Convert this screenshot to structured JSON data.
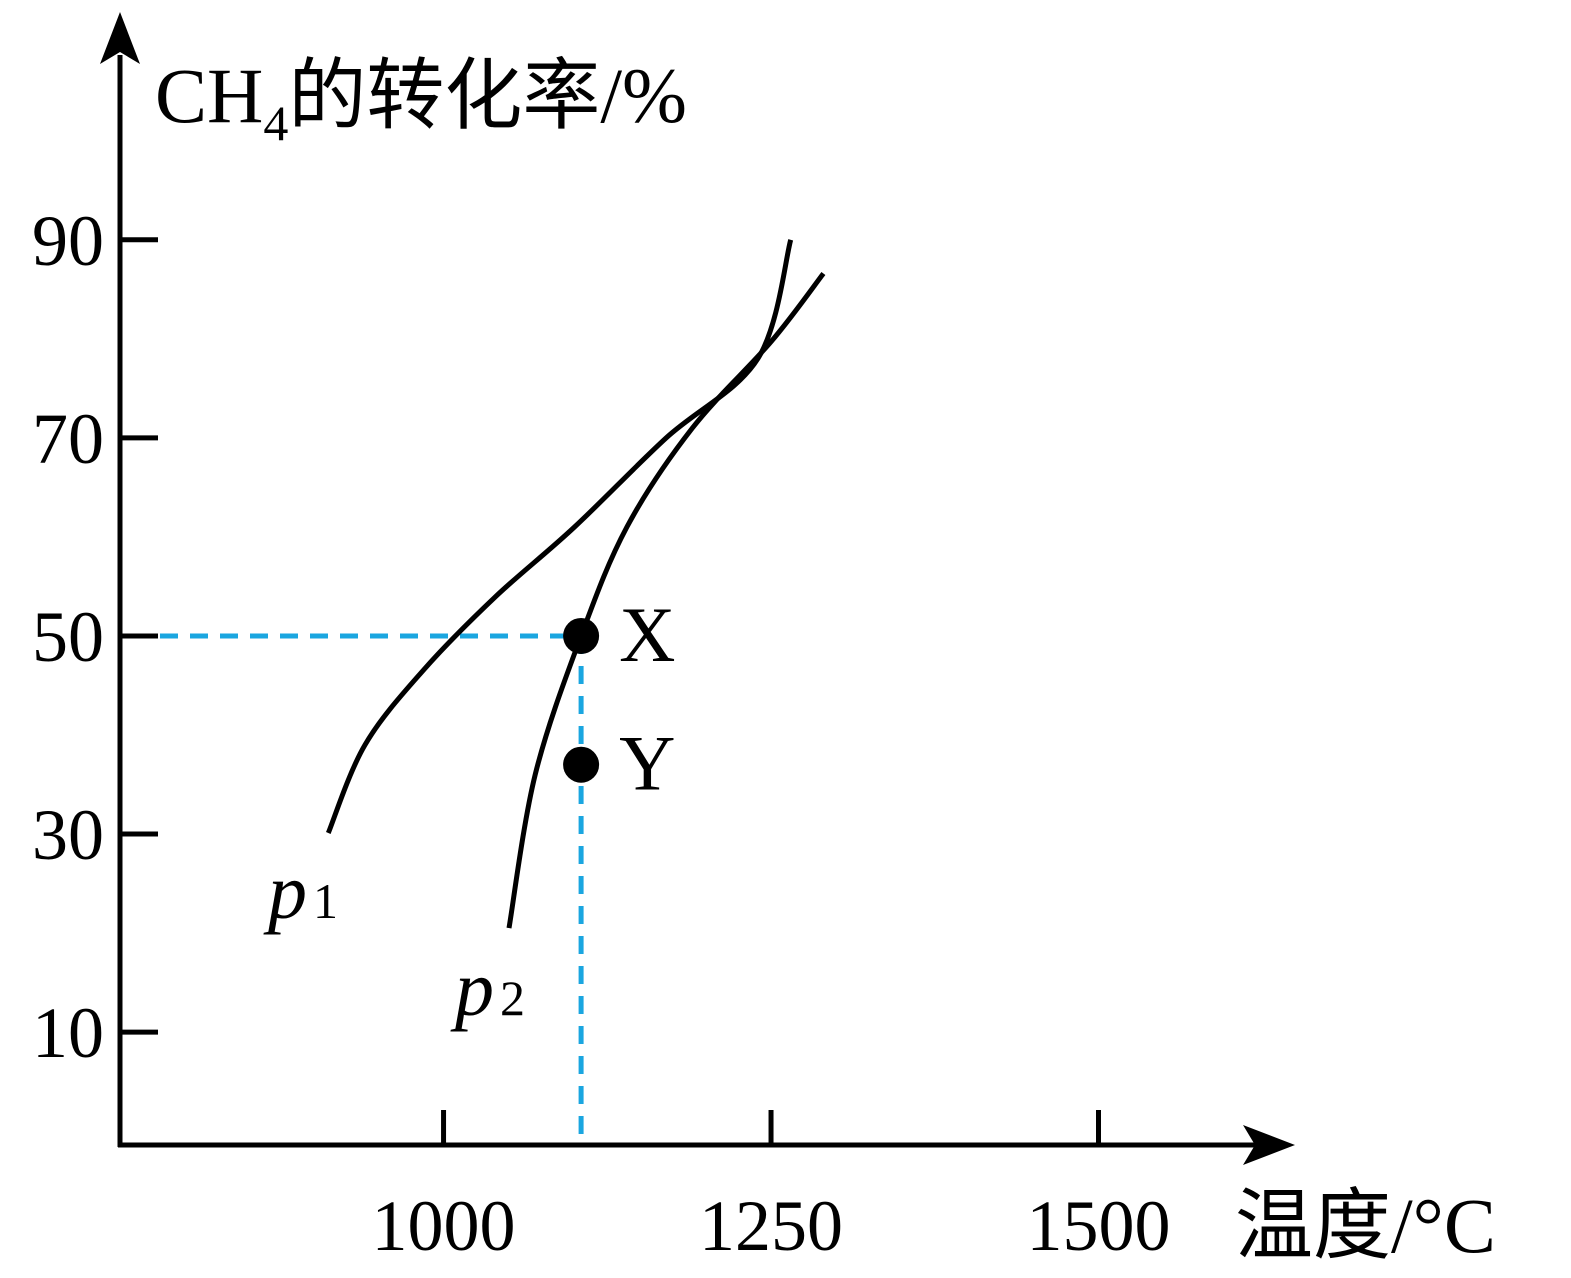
{
  "chart_data": {
    "type": "line",
    "y_axis_label": {
      "main": "CH",
      "sub": "4",
      "rest": "的转化率/%"
    },
    "x_axis_label": "温度/°C",
    "x_ticks": [
      "1000",
      "1250",
      "1500"
    ],
    "x_tick_values": [
      1000,
      1250,
      1500
    ],
    "y_ticks": [
      "10",
      "30",
      "50",
      "70",
      "90"
    ],
    "y_tick_values": [
      10,
      30,
      50,
      70,
      90
    ],
    "xlim": [
      753,
      1650
    ],
    "ylim": [
      -1.4,
      113
    ],
    "series": [
      {
        "name": "p1",
        "label_main": "p",
        "label_sub": "1",
        "x": [
          912,
          940,
          985,
          1040,
          1100,
          1170,
          1240,
          1265
        ],
        "y": [
          30.1,
          39,
          46.6,
          54,
          61,
          70,
          78,
          90
        ]
      },
      {
        "name": "p2",
        "label_main": "p",
        "label_sub": "2",
        "x": [
          1050,
          1070,
          1105,
          1140,
          1190,
          1250,
          1290
        ],
        "y": [
          20.5,
          36,
          50,
          61,
          71,
          79.7,
          86.6
        ]
      }
    ],
    "points": [
      {
        "label": "X",
        "x": 1105,
        "y": 50
      },
      {
        "label": "Y",
        "x": 1105,
        "y": 37
      }
    ],
    "reference_lines": {
      "x": 1105,
      "y": 50,
      "color": "#1aa6e0"
    },
    "line_color": "#000000"
  }
}
